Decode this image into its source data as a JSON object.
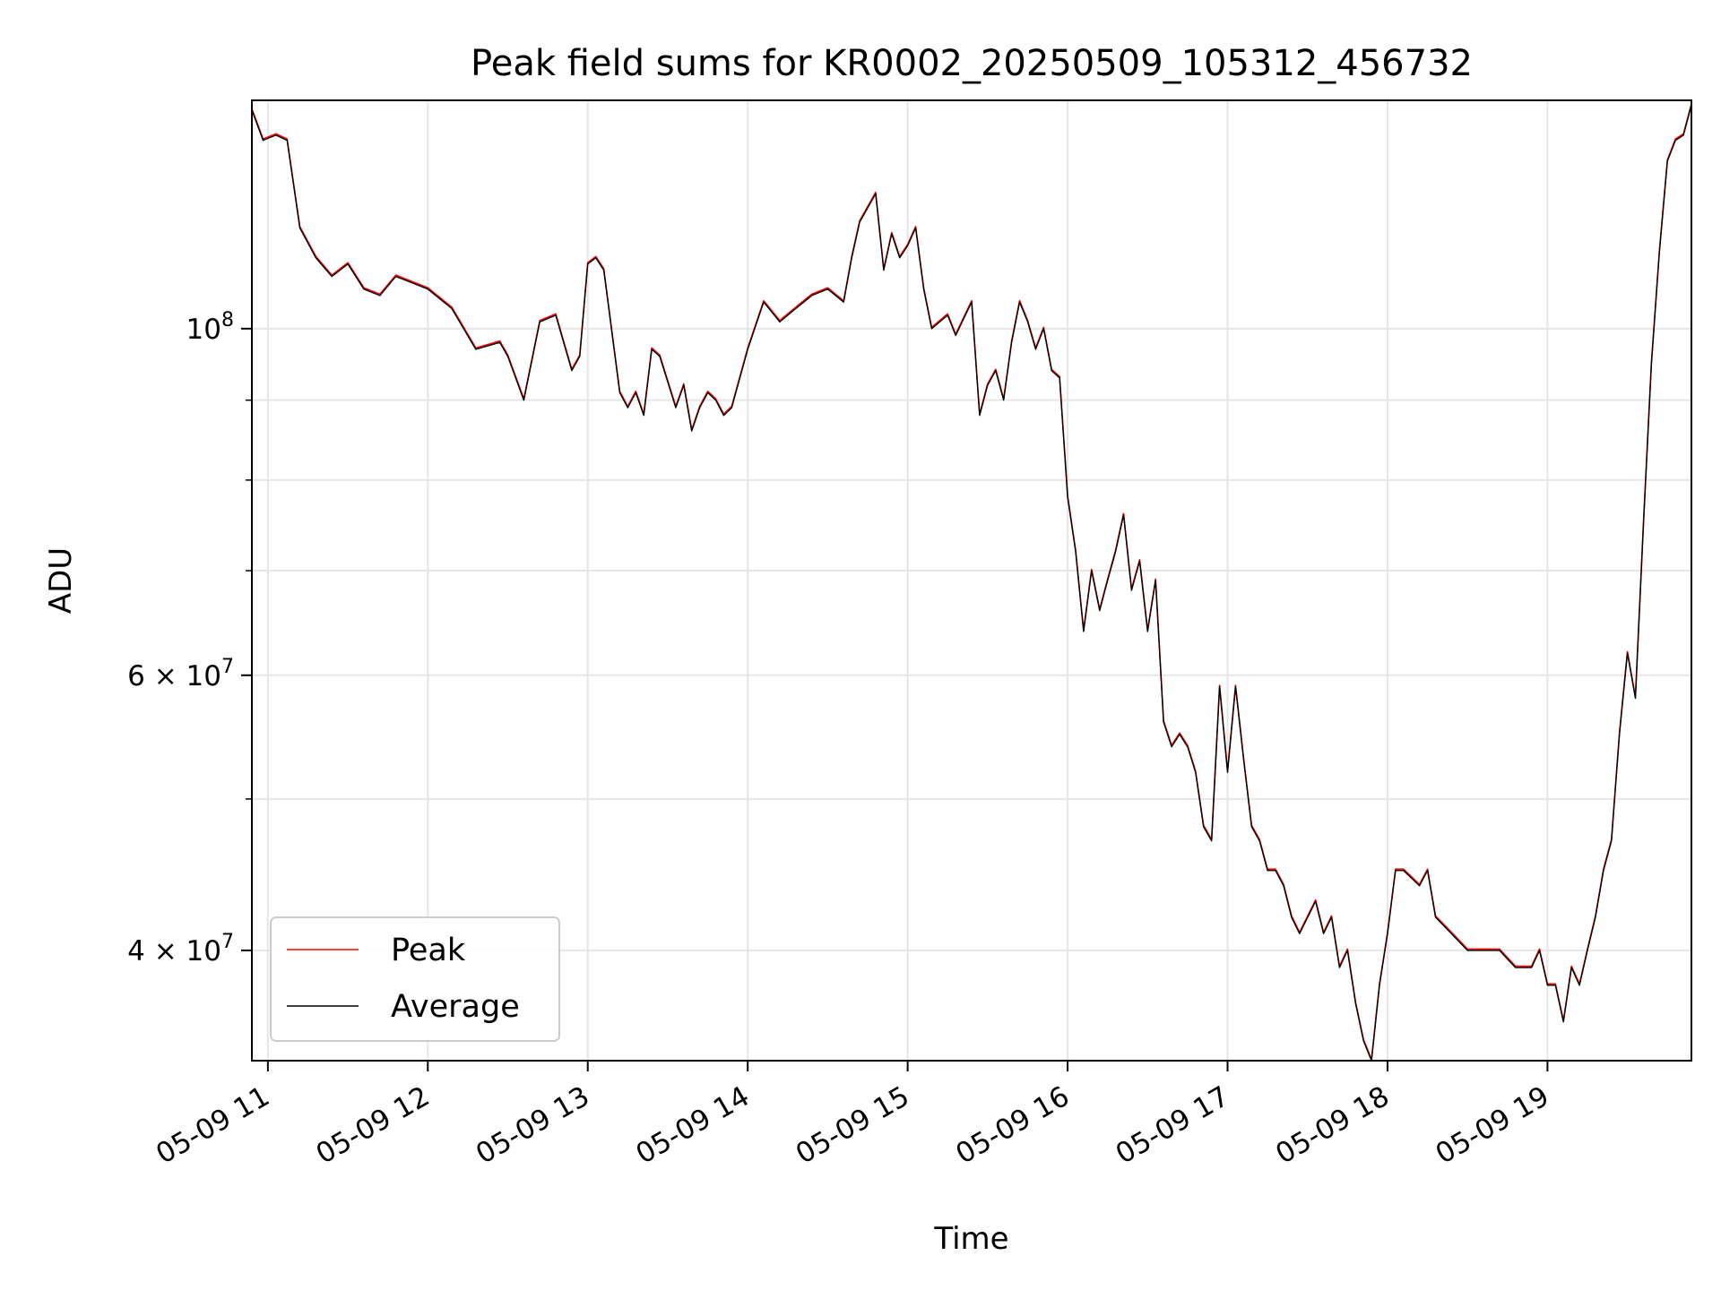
{
  "chart_data": {
    "type": "line",
    "title": "Peak field sums for KR0002_20250509_105312_456732",
    "xlabel": "Time",
    "ylabel": "ADU",
    "x_tick_labels": [
      "05-09 11",
      "05-09 12",
      "05-09 13",
      "05-09 14",
      "05-09 15",
      "05-09 16",
      "05-09 17",
      "05-09 18",
      "05-09 19"
    ],
    "x_tick_hours": [
      11,
      12,
      13,
      14,
      15,
      16,
      17,
      18,
      19
    ],
    "xlim_hours": [
      10.9,
      19.9
    ],
    "yscale": "log",
    "ylim": [
      34000000,
      140000000
    ],
    "y_major_ticks": [
      {
        "value": 100000000,
        "mant": "",
        "exp": "8"
      },
      {
        "value": 60000000,
        "mant": "6",
        "exp": "7"
      },
      {
        "value": 40000000,
        "mant": "4",
        "exp": "7"
      }
    ],
    "y_minor_ticks": [
      50000000,
      70000000,
      80000000,
      90000000
    ],
    "grid": true,
    "legend_position": "lower left",
    "x_hours": [
      10.9,
      10.97,
      11.05,
      11.12,
      11.2,
      11.3,
      11.4,
      11.5,
      11.6,
      11.7,
      11.8,
      11.9,
      12.0,
      12.15,
      12.3,
      12.45,
      12.5,
      12.6,
      12.7,
      12.8,
      12.9,
      12.95,
      13.0,
      13.05,
      13.1,
      13.2,
      13.25,
      13.3,
      13.35,
      13.4,
      13.45,
      13.55,
      13.6,
      13.65,
      13.7,
      13.75,
      13.8,
      13.85,
      13.9,
      14.0,
      14.1,
      14.2,
      14.3,
      14.4,
      14.5,
      14.6,
      14.65,
      14.7,
      14.8,
      14.85,
      14.9,
      14.95,
      15.0,
      15.05,
      15.1,
      15.15,
      15.25,
      15.3,
      15.4,
      15.45,
      15.5,
      15.55,
      15.6,
      15.65,
      15.7,
      15.75,
      15.8,
      15.85,
      15.9,
      15.95,
      16.0,
      16.05,
      16.1,
      16.15,
      16.2,
      16.25,
      16.3,
      16.35,
      16.4,
      16.45,
      16.5,
      16.55,
      16.6,
      16.65,
      16.7,
      16.75,
      16.8,
      16.85,
      16.9,
      16.95,
      17.0,
      17.05,
      17.1,
      17.15,
      17.2,
      17.25,
      17.3,
      17.35,
      17.4,
      17.45,
      17.55,
      17.6,
      17.65,
      17.7,
      17.75,
      17.8,
      17.85,
      17.9,
      17.95,
      18.0,
      18.05,
      18.1,
      18.2,
      18.25,
      18.3,
      18.4,
      18.5,
      18.6,
      18.7,
      18.8,
      18.9,
      18.95,
      19.0,
      19.05,
      19.1,
      19.15,
      19.2,
      19.25,
      19.3,
      19.35,
      19.4,
      19.45,
      19.5,
      19.55,
      19.6,
      19.65,
      19.7,
      19.75,
      19.8,
      19.85,
      19.9
    ],
    "series": [
      {
        "name": "Peak",
        "color": "#ff0000",
        "values": [
          138,
          132,
          133,
          132,
          116,
          111,
          108,
          110,
          106,
          105,
          108,
          107,
          106,
          103,
          97,
          98,
          96,
          90,
          101,
          102,
          94,
          96,
          110,
          111,
          109,
          91,
          89,
          91,
          88,
          97,
          96,
          89,
          92,
          86,
          89,
          91,
          90,
          88,
          89,
          97,
          104,
          101,
          103,
          105,
          106,
          104,
          111,
          117,
          122,
          109,
          115,
          111,
          113,
          116,
          106,
          100,
          102,
          99,
          104,
          88,
          92,
          94,
          90,
          98,
          104,
          101,
          97,
          100,
          94,
          93,
          78,
          72,
          64,
          70,
          66,
          69,
          72,
          76,
          68,
          71,
          64,
          69,
          56,
          54,
          55,
          54,
          52,
          48,
          47,
          59,
          52,
          59,
          53,
          48,
          47,
          45,
          45,
          44,
          42,
          41,
          43,
          41,
          42,
          39,
          40,
          37,
          35,
          34,
          38,
          41,
          45,
          45,
          44,
          45,
          42,
          41,
          40,
          40,
          40,
          39,
          39,
          40,
          38,
          38,
          36,
          39,
          38,
          40,
          42,
          45,
          47,
          55,
          62,
          58,
          75,
          95,
          112,
          128,
          132,
          133,
          139
        ]
      },
      {
        "name": "Average",
        "color": "#000000",
        "values": [
          138,
          132,
          133,
          132,
          116,
          111,
          108,
          110,
          106,
          105,
          108,
          107,
          106,
          103,
          97,
          98,
          96,
          90,
          101,
          102,
          94,
          96,
          110,
          111,
          109,
          91,
          89,
          91,
          88,
          97,
          96,
          89,
          92,
          86,
          89,
          91,
          90,
          88,
          89,
          97,
          104,
          101,
          103,
          105,
          106,
          104,
          111,
          117,
          122,
          109,
          115,
          111,
          113,
          116,
          106,
          100,
          102,
          99,
          104,
          88,
          92,
          94,
          90,
          98,
          104,
          101,
          97,
          100,
          94,
          93,
          78,
          72,
          64,
          70,
          66,
          69,
          72,
          76,
          68,
          71,
          64,
          69,
          56,
          54,
          55,
          54,
          52,
          48,
          47,
          59,
          52,
          59,
          53,
          48,
          47,
          45,
          45,
          44,
          42,
          41,
          43,
          41,
          42,
          39,
          40,
          37,
          35,
          34,
          38,
          41,
          45,
          45,
          44,
          45,
          42,
          41,
          40,
          40,
          40,
          39,
          39,
          40,
          38,
          38,
          36,
          39,
          38,
          40,
          42,
          45,
          47,
          55,
          62,
          58,
          75,
          95,
          112,
          128,
          132,
          133,
          139
        ]
      }
    ]
  }
}
